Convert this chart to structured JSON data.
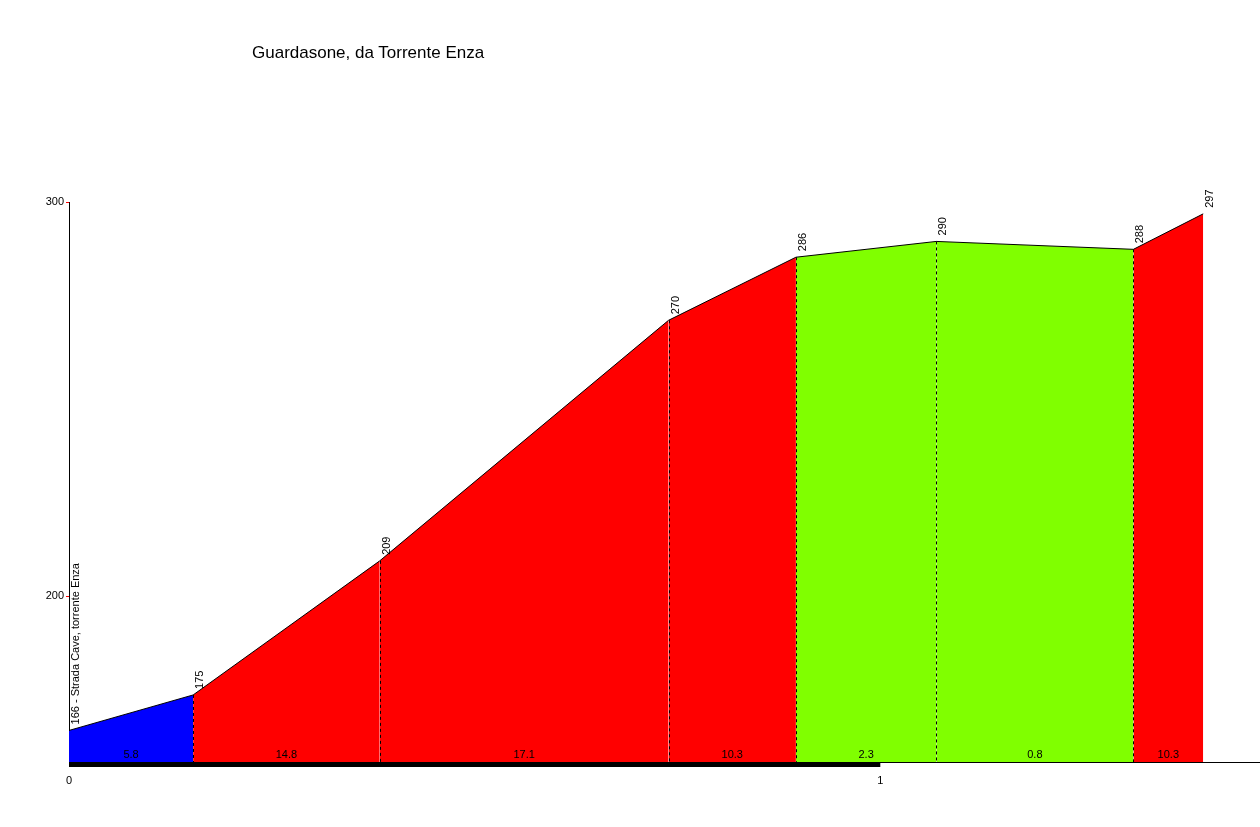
{
  "chart_data": {
    "type": "area",
    "title": "Guardasone, da Torrente Enza",
    "series": [
      {
        "color": "#0000ff",
        "x": [
          0,
          0.153
        ],
        "values": [
          166,
          175
        ],
        "value_labels": [
          "166 - Strada Cave, torrente Enza",
          null
        ]
      },
      {
        "color": "#ff0000",
        "x": [
          0.153,
          0.383
        ],
        "values": [
          175,
          209
        ],
        "value_labels": [
          "175",
          null
        ]
      },
      {
        "color": "#ff0000",
        "x": [
          0.383,
          0.739
        ],
        "values": [
          209,
          270
        ],
        "value_labels": [
          "209",
          null
        ]
      },
      {
        "color": "#ff0000",
        "x": [
          0.739,
          0.896
        ],
        "values": [
          270,
          286
        ],
        "value_labels": [
          "270",
          null
        ]
      },
      {
        "color": "#80ff00",
        "x": [
          0.896,
          1.069
        ],
        "values": [
          286,
          290
        ],
        "value_labels": [
          "286",
          null
        ]
      },
      {
        "color": "#80ff00",
        "x": [
          1.069,
          1.312
        ],
        "values": [
          290,
          288
        ],
        "value_labels": [
          "290",
          null
        ]
      },
      {
        "color": "#ff0000",
        "x": [
          1.312,
          1.398
        ],
        "values": [
          288,
          297
        ],
        "value_labels": [
          "288",
          "297"
        ]
      }
    ],
    "annotations": [
      "5.8",
      "14.8",
      "17.1",
      "10.3",
      "2.3",
      "0.8",
      "10.3"
    ],
    "xlim": [
      0,
      1.468
    ],
    "xticks": [
      0,
      1
    ],
    "ylim": [
      158,
      300
    ],
    "yticks": [
      200,
      300
    ],
    "grid": false,
    "legend": false,
    "line_style": "dashed",
    "marker": "none"
  }
}
